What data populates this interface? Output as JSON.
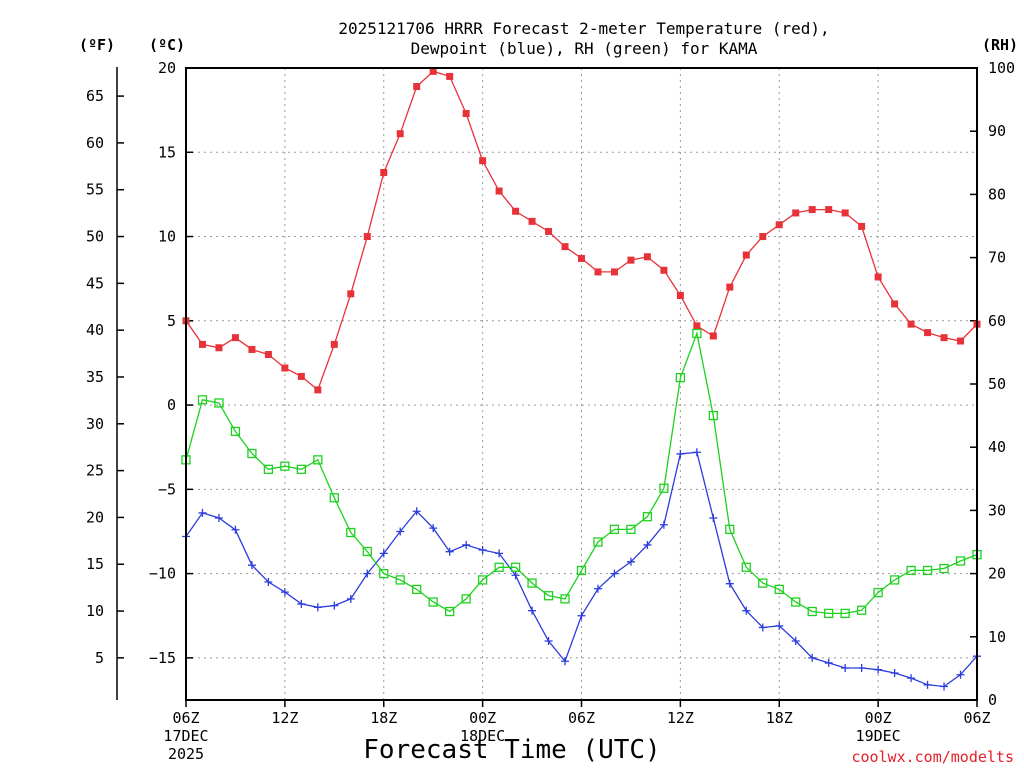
{
  "colors": {
    "temp": "#e8323a",
    "dew": "#2b3ddc",
    "rh": "#1fd11f",
    "grid": "#9a9a9a",
    "credit": "#e4202a"
  },
  "chart_data": {
    "type": "line",
    "title_line1": "2025121706 HRRR Forecast 2-meter Temperature (red),",
    "title_line2": "Dewpoint (blue), RH (green) for KAMA",
    "xlabel": "Forecast Time (UTC)",
    "credit": "coolwx.com/modelts",
    "unit_f": "(ºF)",
    "unit_c": "(ºC)",
    "unit_rh": "(RH)",
    "x_range_hours": [
      0,
      48
    ],
    "c_ylim": [
      -17.5,
      20.0
    ],
    "rh_ylim": [
      0,
      100
    ],
    "c_ticks": [
      "20",
      "15",
      "10",
      "5",
      "0",
      "−5",
      "−10",
      "−15"
    ],
    "c_tick_values": [
      20,
      15,
      10,
      5,
      0,
      -5,
      -10,
      -15
    ],
    "f_ticks": [
      "65",
      "60",
      "55",
      "50",
      "45",
      "40",
      "35",
      "30",
      "25",
      "20",
      "15",
      "10",
      "5"
    ],
    "f_tick_values": [
      65,
      60,
      55,
      50,
      45,
      40,
      35,
      30,
      25,
      20,
      15,
      10,
      5
    ],
    "rh_ticks": [
      "100",
      "90",
      "80",
      "70",
      "60",
      "50",
      "40",
      "30",
      "20",
      "10",
      "0"
    ],
    "rh_tick_values": [
      100,
      90,
      80,
      70,
      60,
      50,
      40,
      30,
      20,
      10,
      0
    ],
    "x_ticks": [
      {
        "hour": 0,
        "label": "06Z",
        "line2": "17DEC",
        "line3": "2025"
      },
      {
        "hour": 6,
        "label": "12Z",
        "line2": "",
        "line3": ""
      },
      {
        "hour": 12,
        "label": "18Z",
        "line2": "",
        "line3": ""
      },
      {
        "hour": 18,
        "label": "00Z",
        "line2": "18DEC",
        "line3": ""
      },
      {
        "hour": 24,
        "label": "06Z",
        "line2": "",
        "line3": ""
      },
      {
        "hour": 30,
        "label": "12Z",
        "line2": "",
        "line3": ""
      },
      {
        "hour": 36,
        "label": "18Z",
        "line2": "",
        "line3": ""
      },
      {
        "hour": 42,
        "label": "00Z",
        "line2": "19DEC",
        "line3": ""
      },
      {
        "hour": 48,
        "label": "06Z",
        "line2": "",
        "line3": ""
      }
    ],
    "series": [
      {
        "name": "Temperature",
        "units": "C",
        "marker": "filled-square",
        "values": [
          5.0,
          3.6,
          3.4,
          4.0,
          3.3,
          3.0,
          2.2,
          1.7,
          0.9,
          3.6,
          6.6,
          10.0,
          13.8,
          16.1,
          18.9,
          19.8,
          19.5,
          17.3,
          14.5,
          12.7,
          11.5,
          10.9,
          10.3,
          9.4,
          8.7,
          7.9,
          7.9,
          8.6,
          8.8,
          8.0,
          6.5,
          4.7,
          4.1,
          7.0,
          8.9,
          10.0,
          10.7,
          11.4,
          11.6,
          11.6,
          11.4,
          10.6,
          7.6,
          6.0,
          4.8,
          4.3,
          4.0,
          3.8,
          4.8
        ]
      },
      {
        "name": "Dewpoint",
        "units": "C",
        "marker": "plus",
        "values": [
          -7.8,
          -6.4,
          -6.7,
          -7.4,
          -9.5,
          -10.5,
          -11.1,
          -11.8,
          -12.0,
          -11.9,
          -11.5,
          -10.0,
          -8.8,
          -7.5,
          -6.3,
          -7.3,
          -8.7,
          -8.3,
          -8.6,
          -8.8,
          -10.1,
          -12.2,
          -14.0,
          -15.2,
          -12.5,
          -10.9,
          -10.0,
          -9.3,
          -8.3,
          -7.1,
          -2.9,
          -2.8,
          -6.7,
          -10.6,
          -12.2,
          -13.2,
          -13.1,
          -14.0,
          -15.0,
          -15.3,
          -15.6,
          -15.6,
          -15.7,
          -15.9,
          -16.2,
          -16.6,
          -16.7,
          -16.0,
          -14.9
        ]
      },
      {
        "name": "RH",
        "units": "%",
        "marker": "open-square",
        "values": [
          38.0,
          47.5,
          47.0,
          42.5,
          39.0,
          36.5,
          37.0,
          36.5,
          38.0,
          32.0,
          26.5,
          23.5,
          20.0,
          19.0,
          17.5,
          15.5,
          14.0,
          16.0,
          19.0,
          21.0,
          21.0,
          18.5,
          16.5,
          16.0,
          20.5,
          25.0,
          27.0,
          27.0,
          29.0,
          33.5,
          51.0,
          58.0,
          45.0,
          27.0,
          21.0,
          18.5,
          17.5,
          15.5,
          14.0,
          13.7,
          13.7,
          14.2,
          17.0,
          19.0,
          20.5,
          20.5,
          20.8,
          22.0,
          23.0
        ]
      }
    ]
  }
}
